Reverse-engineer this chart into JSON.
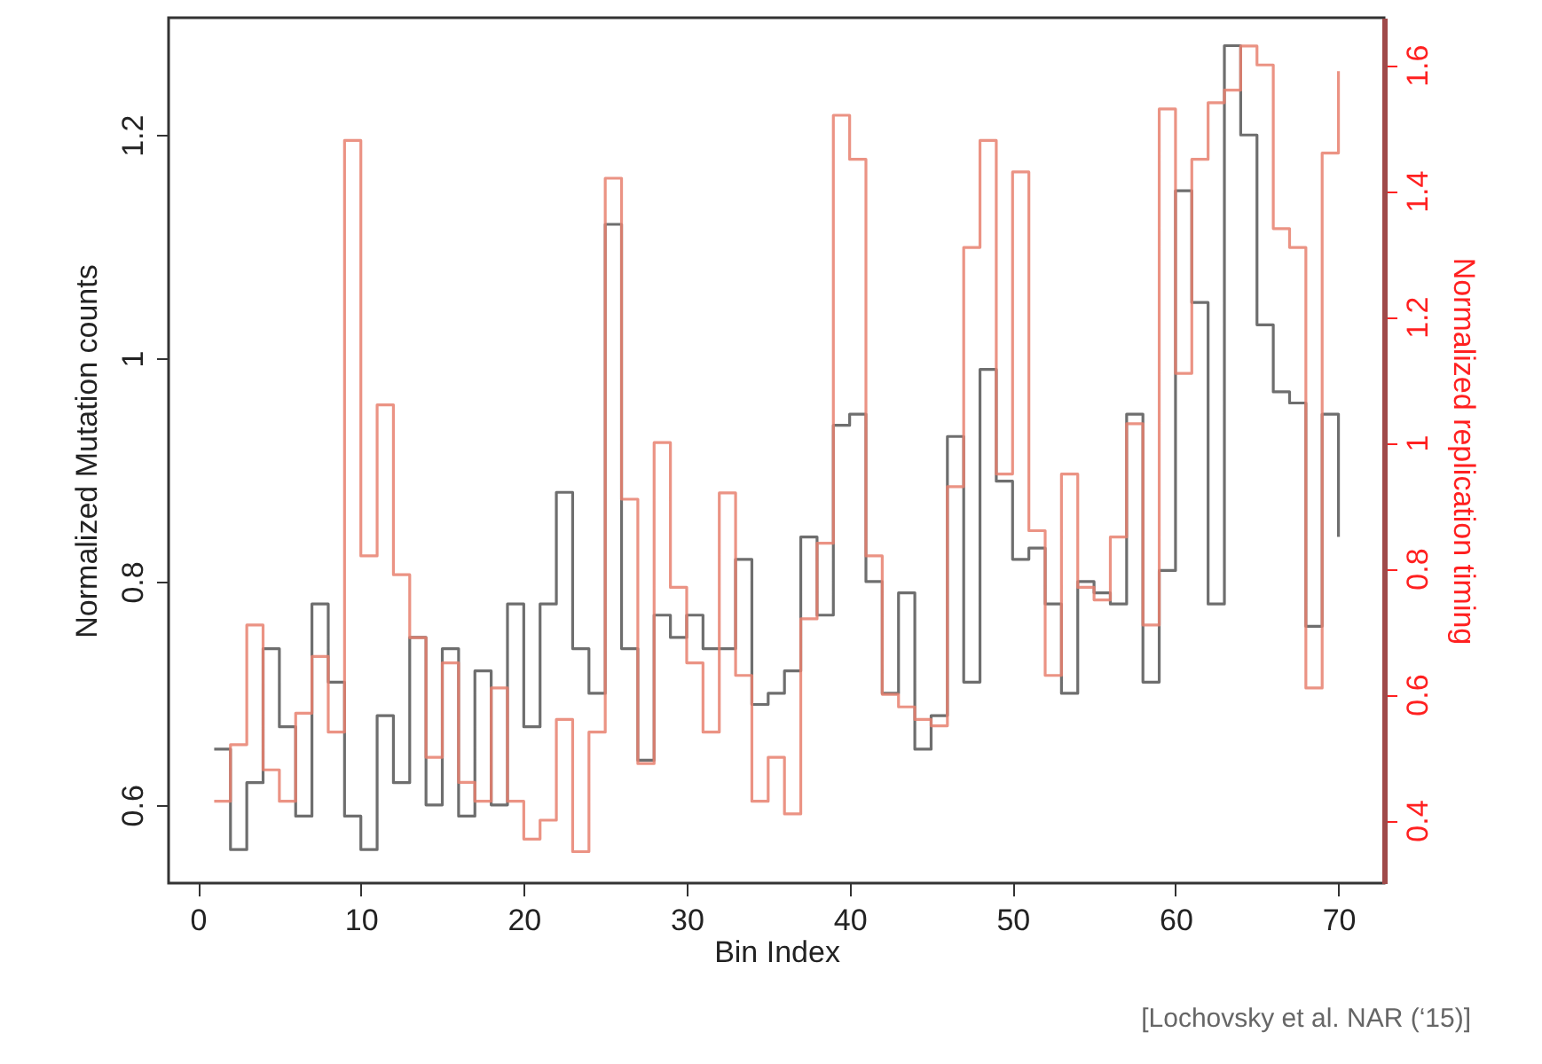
{
  "chart_data": {
    "type": "step",
    "xlabel": "Bin Index",
    "ylabel": "Normalized Mutation counts",
    "y2label": "Normalized replication timing",
    "x": [
      1,
      2,
      3,
      4,
      5,
      6,
      7,
      8,
      9,
      10,
      11,
      12,
      13,
      14,
      15,
      16,
      17,
      18,
      19,
      20,
      21,
      22,
      23,
      24,
      25,
      26,
      27,
      28,
      29,
      30,
      31,
      32,
      33,
      34,
      35,
      36,
      37,
      38,
      39,
      40,
      41,
      42,
      43,
      44,
      45,
      46,
      47,
      48,
      49,
      50,
      51,
      52,
      53,
      54,
      55,
      56,
      57,
      58,
      59,
      60,
      61,
      62,
      63,
      64,
      65,
      66,
      67,
      68,
      69,
      70
    ],
    "xlim": [
      -1.8,
      72.8
    ],
    "xticks": [
      0,
      10,
      20,
      30,
      40,
      50,
      60,
      70
    ],
    "ylim": [
      0.53,
      1.305
    ],
    "yticks": [
      0.6,
      0.8,
      1,
      1.2
    ],
    "y2lim": [
      0.3,
      1.675
    ],
    "y2ticks": [
      0.4,
      0.6,
      0.8,
      1,
      1.2,
      1.4,
      1.6
    ],
    "series": [
      {
        "color": "#555555",
        "values": [
          0.65,
          0.56,
          0.62,
          0.74,
          0.67,
          0.59,
          0.78,
          0.71,
          0.59,
          0.56,
          0.68,
          0.62,
          0.75,
          0.6,
          0.74,
          0.59,
          0.72,
          0.6,
          0.78,
          0.67,
          0.78,
          0.88,
          0.74,
          0.7,
          1.12,
          0.74,
          0.64,
          0.77,
          0.75,
          0.77,
          0.74,
          0.74,
          0.82,
          0.69,
          0.7,
          0.72,
          0.84,
          0.77,
          0.94,
          0.95,
          0.8,
          0.7,
          0.79,
          0.65,
          0.68,
          0.93,
          0.71,
          0.99,
          0.89,
          0.82,
          0.83,
          0.78,
          0.7,
          0.8,
          0.79,
          0.78,
          0.95,
          0.71,
          0.81,
          1.15,
          1.05,
          0.78,
          1.28,
          1.2,
          1.03,
          0.97,
          0.96,
          0.76,
          0.95,
          0.84
        ]
      },
      {
        "color": "#e8806e",
        "axis": "y2",
        "values": [
          0.43,
          0.52,
          0.71,
          0.48,
          0.43,
          0.57,
          0.66,
          0.54,
          1.48,
          0.82,
          1.06,
          0.79,
          0.69,
          0.5,
          0.65,
          0.46,
          0.43,
          0.61,
          0.43,
          0.37,
          0.4,
          0.56,
          0.35,
          0.54,
          1.42,
          0.91,
          0.49,
          1.0,
          0.77,
          0.65,
          0.54,
          0.92,
          0.63,
          0.43,
          0.5,
          0.41,
          0.72,
          0.84,
          1.52,
          1.45,
          0.82,
          0.6,
          0.58,
          0.56,
          0.55,
          0.93,
          1.31,
          1.48,
          0.95,
          1.43,
          0.86,
          0.63,
          0.95,
          0.77,
          0.75,
          0.85,
          1.03,
          0.71,
          1.53,
          1.11,
          1.45,
          1.54,
          1.56,
          1.63,
          1.6,
          1.34,
          1.31,
          0.61,
          1.46,
          1.59
        ]
      }
    ],
    "grid": false,
    "annotations": [
      "[Lochovsky et al. NAR (‘15)]"
    ]
  }
}
